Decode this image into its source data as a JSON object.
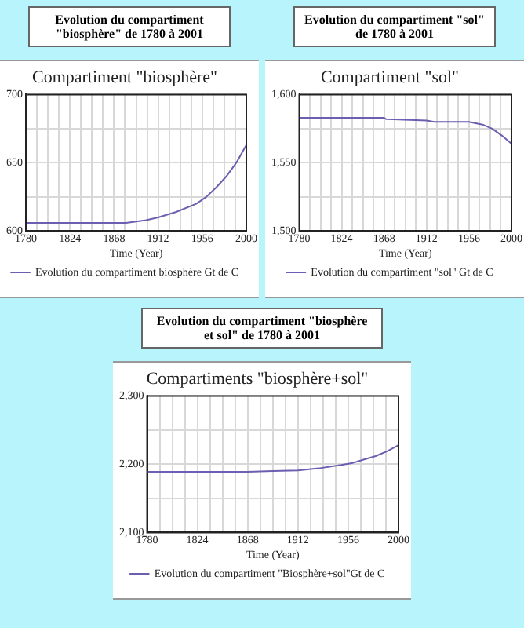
{
  "chart_data": [
    {
      "type": "line",
      "title": "Evolution du compartiment \"biosphère\" de 1780 à 2001",
      "subtitle": "Compartiment \"biosphère\"",
      "xlabel": "Time (Year)",
      "x": [
        1780,
        1824,
        1868,
        1880,
        1890,
        1900,
        1912,
        1930,
        1950,
        1960,
        1970,
        1980,
        1990,
        2000
      ],
      "series": [
        {
          "name": "Evolution du compartiment biosphère Gt de C",
          "color": "#6a5fb0",
          "values": [
            606,
            606,
            606,
            606,
            607,
            608,
            610,
            614,
            620,
            625,
            632,
            640,
            650,
            663
          ]
        }
      ],
      "xlim": [
        1780,
        2000
      ],
      "xticks": [
        1780,
        {
          "value": 1791,
          "label": null
        },
        {
          "value": 1802,
          "label": null
        },
        {
          "value": 1813,
          "label": null
        },
        1824,
        {
          "value": 1835,
          "label": null
        },
        {
          "value": 1846,
          "label": null
        },
        {
          "value": 1857,
          "label": null
        },
        1868,
        {
          "value": 1879,
          "label": null
        },
        {
          "value": 1890,
          "label": null
        },
        {
          "value": 1901,
          "label": null
        },
        1912,
        {
          "value": 1923,
          "label": null
        },
        {
          "value": 1934,
          "label": null
        },
        {
          "value": 1945,
          "label": null
        },
        1956,
        {
          "value": 1967,
          "label": null
        },
        {
          "value": 1978,
          "label": null
        },
        {
          "value": 1989,
          "label": null
        },
        2000
      ],
      "ylim": [
        600,
        700
      ],
      "yticks": [
        600,
        {
          "value": 625,
          "label": null
        },
        650,
        {
          "value": 675,
          "label": null
        },
        700
      ],
      "grid": true,
      "legend": "bottom",
      "marker": "none",
      "line_style": "solid"
    },
    {
      "type": "line",
      "title": "Evolution du compartiment \"sol\" de 1780 à 2001",
      "subtitle": "Compartiment \"sol\"",
      "xlabel": "Time (Year)",
      "x": [
        1780,
        1824,
        1868,
        1870,
        1912,
        1920,
        1956,
        1970,
        1980,
        1990,
        2000
      ],
      "series": [
        {
          "name": "Evolution du compartiment \"sol\" Gt de C",
          "color": "#6a5fb0",
          "values": [
            1583,
            1583,
            1583,
            1582,
            1581,
            1580,
            1580,
            1578,
            1575,
            1570,
            1564
          ]
        }
      ],
      "xlim": [
        1780,
        2000
      ],
      "xticks": [
        1780,
        {
          "value": 1791,
          "label": null
        },
        {
          "value": 1802,
          "label": null
        },
        {
          "value": 1813,
          "label": null
        },
        1824,
        {
          "value": 1835,
          "label": null
        },
        {
          "value": 1846,
          "label": null
        },
        {
          "value": 1857,
          "label": null
        },
        1868,
        {
          "value": 1879,
          "label": null
        },
        {
          "value": 1890,
          "label": null
        },
        {
          "value": 1901,
          "label": null
        },
        1912,
        {
          "value": 1923,
          "label": null
        },
        {
          "value": 1934,
          "label": null
        },
        {
          "value": 1945,
          "label": null
        },
        1956,
        {
          "value": 1967,
          "label": null
        },
        {
          "value": 1978,
          "label": null
        },
        {
          "value": 1989,
          "label": null
        },
        2000
      ],
      "ylim": [
        1500,
        1600
      ],
      "yticks": [
        {
          "value": 1500,
          "label": "1,500"
        },
        {
          "value": 1525,
          "label": null
        },
        {
          "value": 1550,
          "label": "1,550"
        },
        {
          "value": 1575,
          "label": null
        },
        {
          "value": 1600,
          "label": "1,600"
        }
      ],
      "grid": true,
      "legend": "bottom",
      "marker": "none",
      "line_style": "solid"
    },
    {
      "type": "line",
      "title": "Evolution du compartiment \"biosphère et sol\" de 1780 à 2001",
      "subtitle": "Compartiments \"biosphère+sol\"",
      "xlabel": "Time (Year)",
      "x": [
        1780,
        1824,
        1868,
        1890,
        1912,
        1930,
        1950,
        1960,
        1970,
        1980,
        1990,
        2000
      ],
      "series": [
        {
          "name": "Evolution du compartiment \"Biosphère+sol\"Gt de C",
          "color": "#6a5fb0",
          "values": [
            2189,
            2189,
            2189,
            2190,
            2191,
            2194,
            2199,
            2202,
            2207,
            2212,
            2219,
            2228
          ]
        }
      ],
      "xlim": [
        1780,
        2000
      ],
      "xticks": [
        1780,
        {
          "value": 1791,
          "label": null
        },
        {
          "value": 1802,
          "label": null
        },
        {
          "value": 1813,
          "label": null
        },
        1824,
        {
          "value": 1835,
          "label": null
        },
        {
          "value": 1846,
          "label": null
        },
        {
          "value": 1857,
          "label": null
        },
        1868,
        {
          "value": 1879,
          "label": null
        },
        {
          "value": 1890,
          "label": null
        },
        {
          "value": 1901,
          "label": null
        },
        1912,
        {
          "value": 1923,
          "label": null
        },
        {
          "value": 1934,
          "label": null
        },
        {
          "value": 1945,
          "label": null
        },
        1956,
        {
          "value": 1967,
          "label": null
        },
        {
          "value": 1978,
          "label": null
        },
        {
          "value": 1989,
          "label": null
        },
        2000
      ],
      "ylim": [
        2100,
        2300
      ],
      "yticks": [
        {
          "value": 2100,
          "label": "2,100"
        },
        {
          "value": 2150,
          "label": null
        },
        {
          "value": 2200,
          "label": "2,200"
        },
        {
          "value": 2250,
          "label": null
        },
        {
          "value": 2300,
          "label": "2,300"
        }
      ],
      "grid": true,
      "legend": "bottom",
      "marker": "none",
      "line_style": "solid"
    }
  ]
}
